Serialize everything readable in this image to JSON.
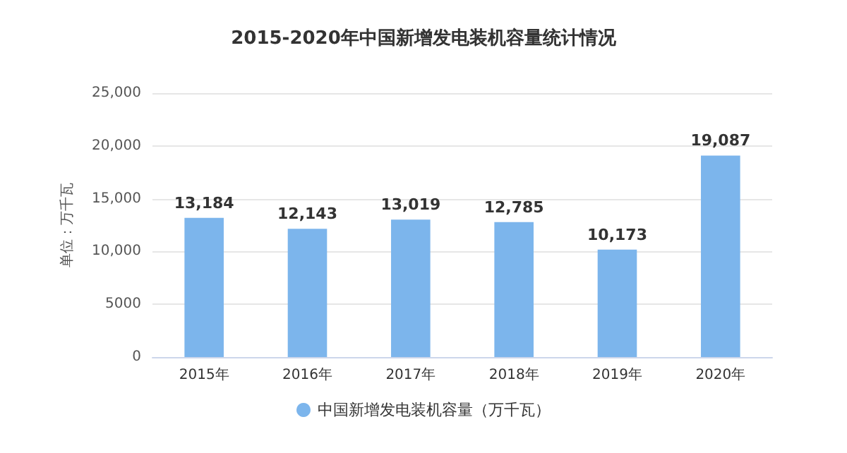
{
  "chart_data": {
    "type": "bar",
    "title": "2015-2020年中国新增发电装机容量统计情况",
    "ylabel": "单位：万千瓦",
    "categories": [
      "2015年",
      "2016年",
      "2017年",
      "2018年",
      "2019年",
      "2020年"
    ],
    "series": [
      {
        "name": "中国新增发电装机容量（万千瓦）",
        "color": "#7cb5ec",
        "values": [
          13184,
          12143,
          13019,
          12785,
          10173,
          19087
        ]
      }
    ],
    "value_labels": [
      "13,184",
      "12,143",
      "13,019",
      "12,785",
      "10,173",
      "19,087"
    ],
    "ylim": [
      0,
      25000
    ],
    "yticks": [
      0,
      5000,
      {
        "value": 10000,
        "label": "10,000"
      },
      {
        "value": 15000,
        "label": "15,000"
      },
      {
        "value": 20000,
        "label": "20,000"
      },
      {
        "value": 25000,
        "label": "25,000"
      }
    ],
    "grid": "y",
    "legend": "bottom"
  }
}
